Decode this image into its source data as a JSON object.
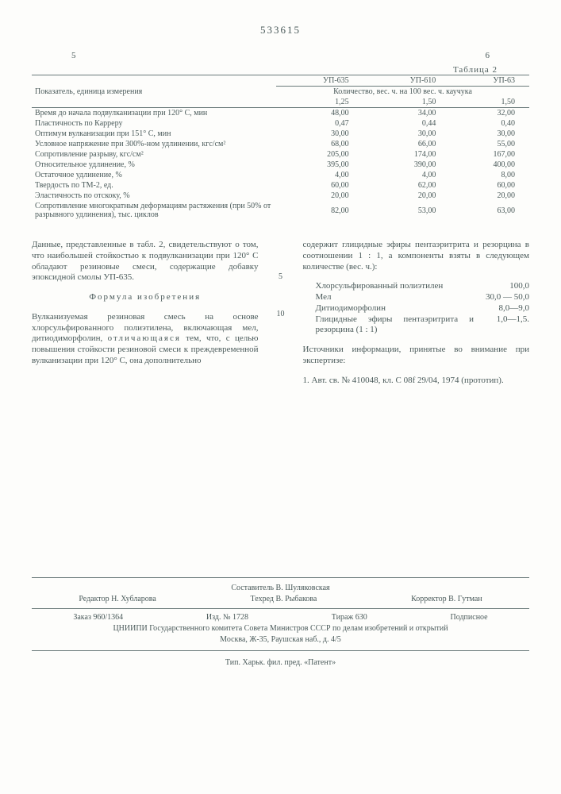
{
  "docnum": "533615",
  "col_left_num": "5",
  "col_right_num": "6",
  "table": {
    "caption": "Таблица 2",
    "header_label": "Показатель, единица измерения",
    "header_cols": [
      "УП-635",
      "УП-610",
      "УП-63"
    ],
    "header_sub": "Количество, вес. ч. на 100 вес. ч. каучука",
    "header_vals": [
      "1,25",
      "1,50",
      "1,50"
    ],
    "rows": [
      {
        "label": "Время до начала подвулканизации при 120° С, мин",
        "v": [
          "48,00",
          "34,00",
          "32,00"
        ]
      },
      {
        "label": "Пластичность по Карреру",
        "v": [
          "0,47",
          "0,44",
          "0,40"
        ]
      },
      {
        "label": "Оптимум вулканизации при 151° С, мин",
        "v": [
          "30,00",
          "30,00",
          "30,00"
        ]
      },
      {
        "label": "Условное напряжение при 300%-ном удлинении, кгс/см²",
        "v": [
          "68,00",
          "66,00",
          "55,00"
        ]
      },
      {
        "label": "Сопротивление разрыву, кгс/см²",
        "v": [
          "205,00",
          "174,00",
          "167,00"
        ]
      },
      {
        "label": "Относительное удлинение, %",
        "v": [
          "395,00",
          "390,00",
          "400,00"
        ]
      },
      {
        "label": "Остаточное удлинение, %",
        "v": [
          "4,00",
          "4,00",
          "8,00"
        ]
      },
      {
        "label": "Твердость по ТМ-2, ед.",
        "v": [
          "60,00",
          "62,00",
          "60,00"
        ]
      },
      {
        "label": "Эластичность по отскоку, %",
        "v": [
          "20,00",
          "20,00",
          "20,00"
        ]
      },
      {
        "label": "Сопротивление многократным деформациям растяжения (при 50% от разрывного удлинения), тыс. циклов",
        "v": [
          "82,00",
          "53,00",
          "63,00"
        ]
      }
    ]
  },
  "left_col": {
    "para1": "Данные, представленные в табл. 2, свидетельствуют о том, что наибольшей стойкостью к подвулканизации при 120° С обладают резиновые смеси, содержащие добавку эпоксидной смолы УП-635.",
    "formula_title": "Формула изобретения",
    "para2_a": "Вулканизуемая резиновая смесь на основе хлорсульфированного полиэтилена, включающая мел, дитиодиморфолин, ",
    "para2_b": "отличающаяся",
    "para2_c": " тем, что, с целью повышения стойкости резиновой смеси к преждевременной вулканизации при 120° С, она дополнительно"
  },
  "right_col": {
    "para1": "содержит глицидные эфиры пентаэритрита и резорцина в соотношении 1 : 1, а компоненты взяты в следующем количестве (вес. ч.):",
    "components": [
      {
        "label": "Хлорсульфированный полиэтилен",
        "val": "100,0"
      },
      {
        "label": "Мел",
        "val": "30,0 — 50,0"
      },
      {
        "label": "Дитиодиморфолин",
        "val": "8,0—9,0"
      },
      {
        "label": "Глицидные эфиры пентаэритрита и резорцина (1 : 1)",
        "val": "1,0—1,5."
      }
    ],
    "para2": "Источники информации, принятые во внимание при экспертизе:",
    "para3": "1. Авт. св. № 410048, кл. C 08f 29/04, 1974 (прототип)."
  },
  "gutter": [
    "5",
    "10"
  ],
  "footer": {
    "compiler": "Составитель В. Шуляковская",
    "editor": "Редактор Н. Хубларова",
    "tech": "Техред В. Рыбакова",
    "corr": "Корректор В. Гутман",
    "zakaz": "Заказ 960/1364",
    "izd": "Изд. № 1728",
    "tirazh": "Тираж 630",
    "podp": "Подписное",
    "org": "ЦНИИПИ Государственного комитета Совета Министров СССР по делам изобретений и открытий",
    "addr": "Москва, Ж-35, Раушская наб., д. 4/5",
    "printer": "Тип. Харьк. фил. пред. «Патент»"
  }
}
